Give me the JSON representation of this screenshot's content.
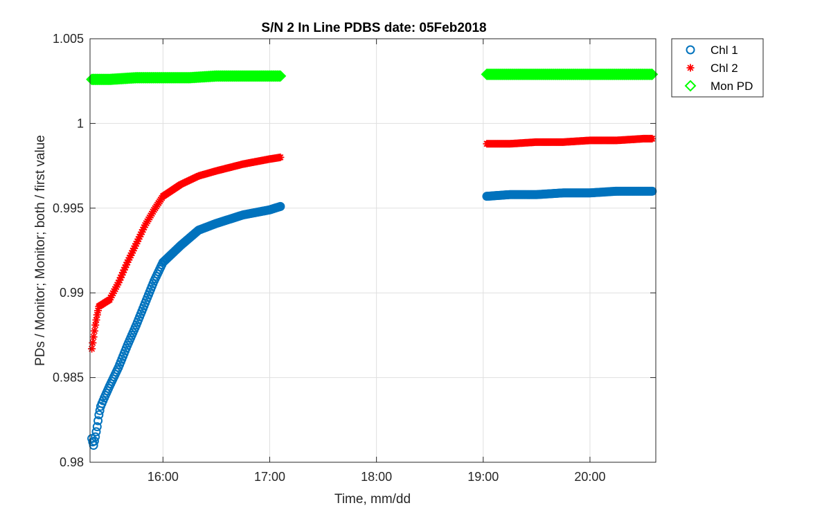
{
  "chart_data": {
    "type": "scatter",
    "title": "S/N 2 In Line PDBS date: 05Feb2018",
    "xlabel": "Time, mm/dd",
    "ylabel": "PDs / Monitor; Monitor; both / first value",
    "xlim": [
      "15:19",
      "20:37"
    ],
    "ylim": [
      0.98,
      1.005
    ],
    "x_ticks": [
      "16:00",
      "17:00",
      "18:00",
      "19:00",
      "20:00"
    ],
    "y_ticks": [
      "0.98",
      "0.985",
      "0.99",
      "0.995",
      "1",
      "1.005"
    ],
    "grid": true,
    "legend_position": "outside-top-right",
    "series": [
      {
        "name": "Chl 1",
        "marker": "circle",
        "color": "#0072BD",
        "points": [
          [
            "15:20",
            0.9814
          ],
          [
            "15:21",
            0.981
          ],
          [
            "15:22",
            0.9815
          ],
          [
            "15:23",
            0.9821
          ],
          [
            "15:24",
            0.9828
          ],
          [
            "15:25",
            0.9833
          ],
          [
            "15:27",
            0.9838
          ],
          [
            "15:30",
            0.9845
          ],
          [
            "15:35",
            0.9856
          ],
          [
            "15:40",
            0.9869
          ],
          [
            "15:45",
            0.9881
          ],
          [
            "15:50",
            0.9894
          ],
          [
            "15:55",
            0.9907
          ],
          [
            "16:00",
            0.9918
          ],
          [
            "16:10",
            0.9928
          ],
          [
            "16:20",
            0.9937
          ],
          [
            "16:30",
            0.9941
          ],
          [
            "16:45",
            0.9946
          ],
          [
            "17:00",
            0.9949
          ],
          [
            "17:06",
            0.9951
          ],
          [
            "19:02",
            0.9957
          ],
          [
            "19:15",
            0.9958
          ],
          [
            "19:30",
            0.9958
          ],
          [
            "19:45",
            0.9959
          ],
          [
            "20:00",
            0.9959
          ],
          [
            "20:15",
            0.996
          ],
          [
            "20:30",
            0.996
          ],
          [
            "20:35",
            0.996
          ]
        ]
      },
      {
        "name": "Chl 2",
        "marker": "asterisk",
        "color": "#FF0000",
        "points": [
          [
            "15:20",
            0.9867
          ],
          [
            "15:21",
            0.9874
          ],
          [
            "15:22",
            0.9881
          ],
          [
            "15:23",
            0.9887
          ],
          [
            "15:24",
            0.9892
          ],
          [
            "15:27",
            0.9894
          ],
          [
            "15:30",
            0.9896
          ],
          [
            "15:35",
            0.9906
          ],
          [
            "15:40",
            0.9918
          ],
          [
            "15:45",
            0.9929
          ],
          [
            "15:50",
            0.994
          ],
          [
            "15:55",
            0.9949
          ],
          [
            "16:00",
            0.9957
          ],
          [
            "16:10",
            0.9964
          ],
          [
            "16:20",
            0.9969
          ],
          [
            "16:30",
            0.9972
          ],
          [
            "16:45",
            0.9976
          ],
          [
            "17:00",
            0.9979
          ],
          [
            "17:06",
            0.998
          ],
          [
            "19:02",
            0.9988
          ],
          [
            "19:15",
            0.9988
          ],
          [
            "19:30",
            0.9989
          ],
          [
            "19:45",
            0.9989
          ],
          [
            "20:00",
            0.999
          ],
          [
            "20:15",
            0.999
          ],
          [
            "20:30",
            0.9991
          ],
          [
            "20:35",
            0.9991
          ]
        ]
      },
      {
        "name": "Mon PD",
        "marker": "diamond",
        "color": "#00FF00",
        "points": [
          [
            "15:20",
            1.0026
          ],
          [
            "15:30",
            1.0026
          ],
          [
            "15:45",
            1.0027
          ],
          [
            "16:00",
            1.0027
          ],
          [
            "16:15",
            1.0027
          ],
          [
            "16:30",
            1.0028
          ],
          [
            "16:45",
            1.0028
          ],
          [
            "17:00",
            1.0028
          ],
          [
            "17:06",
            1.0028
          ],
          [
            "19:02",
            1.0029
          ],
          [
            "19:15",
            1.0029
          ],
          [
            "19:30",
            1.0029
          ],
          [
            "19:45",
            1.0029
          ],
          [
            "20:00",
            1.0029
          ],
          [
            "20:15",
            1.0029
          ],
          [
            "20:30",
            1.0029
          ],
          [
            "20:35",
            1.0029
          ]
        ]
      }
    ]
  }
}
